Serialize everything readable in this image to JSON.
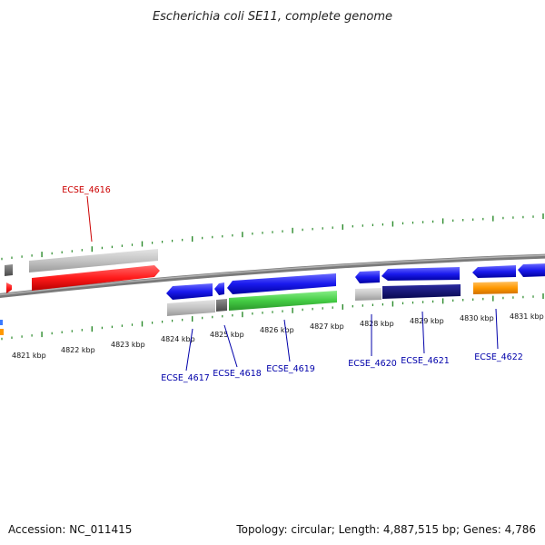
{
  "title": "Escherichia coli SE11, complete genome",
  "accession": "Accession: NC_011415",
  "summary": "Topology: circular; Length: 4,887,515 bp; Genes: 4,786",
  "colors": {
    "backbone": "#8a8a8a",
    "tick": "#2a8a2a",
    "forward_gene": "#ff1a1a",
    "reverse_gene": "#1a1aee",
    "rna_gray": "#c4c4c4",
    "dark_gray": "#6a6a6a",
    "green_gene": "#44cc44",
    "navy_gene": "#0d0d7a",
    "orange_gene": "#ff9900",
    "label_red": "#cc0000",
    "label_blue": "#0000aa"
  },
  "kbp_labels": [
    "4821 kbp",
    "4822 kbp",
    "4823 kbp",
    "4824 kbp",
    "4825 kbp",
    "4826 kbp",
    "4827 kbp",
    "4828 kbp",
    "4829 kbp",
    "4830 kbp",
    "4831 kbp"
  ],
  "gene_labels": [
    {
      "text": "ECSE_4616",
      "strand": "forward"
    },
    {
      "text": "ECSE_4617",
      "strand": "reverse"
    },
    {
      "text": "ECSE_4618",
      "strand": "reverse"
    },
    {
      "text": "ECSE_4619",
      "strand": "reverse"
    },
    {
      "text": "ECSE_4620",
      "strand": "reverse"
    },
    {
      "text": "ECSE_4621",
      "strand": "reverse"
    },
    {
      "text": "ECSE_4622",
      "strand": "reverse"
    }
  ]
}
